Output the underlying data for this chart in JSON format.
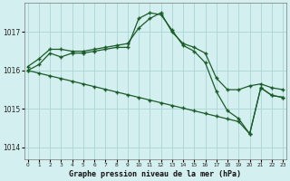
{
  "title": "Graphe pression niveau de la mer (hPa)",
  "bg_color": "#d4efef",
  "grid_color": "#aed8d8",
  "line_color": "#1a5c28",
  "xlim": [
    -0.3,
    23.3
  ],
  "ylim": [
    1013.7,
    1017.75
  ],
  "yticks": [
    1014,
    1015,
    1016,
    1017
  ],
  "xticks": [
    0,
    1,
    2,
    3,
    4,
    5,
    6,
    7,
    8,
    9,
    10,
    11,
    12,
    13,
    14,
    15,
    16,
    17,
    18,
    19,
    20,
    21,
    22,
    23
  ],
  "series1": [
    1016.1,
    1016.3,
    1016.55,
    1016.55,
    1016.5,
    1016.5,
    1016.55,
    1016.6,
    1016.65,
    1016.7,
    1017.1,
    1017.35,
    1017.5,
    1017.0,
    1016.7,
    1016.6,
    1016.45,
    1015.8,
    1015.5,
    1015.5,
    1015.6,
    1015.65,
    1015.55,
    1015.5
  ],
  "series2": [
    1016.0,
    1016.15,
    1016.45,
    1016.35,
    1016.45,
    1016.45,
    1016.5,
    1016.55,
    1016.6,
    1016.6,
    1017.35,
    1017.5,
    1017.45,
    1017.05,
    1016.65,
    1016.5,
    1016.2,
    1015.45,
    1014.95,
    1014.75,
    1014.35,
    1015.55,
    1015.35,
    1015.3
  ],
  "series3": [
    1016.0,
    1015.93,
    1015.86,
    1015.79,
    1015.72,
    1015.65,
    1015.58,
    1015.51,
    1015.44,
    1015.37,
    1015.3,
    1015.23,
    1015.16,
    1015.09,
    1015.02,
    1014.95,
    1014.88,
    1014.81,
    1014.74,
    1014.67,
    1014.35,
    1015.55,
    1015.35,
    1015.3
  ]
}
